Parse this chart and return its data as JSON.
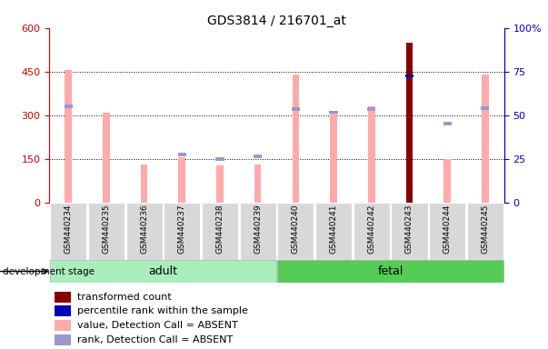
{
  "title": "GDS3814 / 216701_at",
  "samples": [
    "GSM440234",
    "GSM440235",
    "GSM440236",
    "GSM440237",
    "GSM440238",
    "GSM440239",
    "GSM440240",
    "GSM440241",
    "GSM440242",
    "GSM440243",
    "GSM440244",
    "GSM440245"
  ],
  "groups": [
    "adult",
    "adult",
    "adult",
    "adult",
    "adult",
    "adult",
    "fetal",
    "fetal",
    "fetal",
    "fetal",
    "fetal",
    "fetal"
  ],
  "pink_bars": [
    455,
    310,
    130,
    155,
    128,
    130,
    440,
    310,
    330,
    160,
    150,
    440
  ],
  "lavender_dots": [
    330,
    0,
    0,
    165,
    148,
    158,
    320,
    310,
    320,
    0,
    270,
    325
  ],
  "red_bars": [
    0,
    0,
    0,
    0,
    0,
    0,
    0,
    0,
    0,
    548,
    0,
    0
  ],
  "blue_dots": [
    0,
    0,
    0,
    0,
    0,
    0,
    0,
    0,
    0,
    435,
    0,
    0
  ],
  "left_ylim": [
    0,
    600
  ],
  "right_ylim": [
    0,
    100
  ],
  "left_yticks": [
    0,
    150,
    300,
    450,
    600
  ],
  "right_yticks": [
    0,
    25,
    50,
    75,
    100
  ],
  "left_tick_color": "#cc0000",
  "right_tick_color": "#0000cc",
  "pink_color": "#ffaaaa",
  "lavender_color": "#9999cc",
  "red_color": "#880000",
  "blue_color": "#0000bb",
  "adult_color": "#aaeebb",
  "fetal_color": "#55cc55"
}
